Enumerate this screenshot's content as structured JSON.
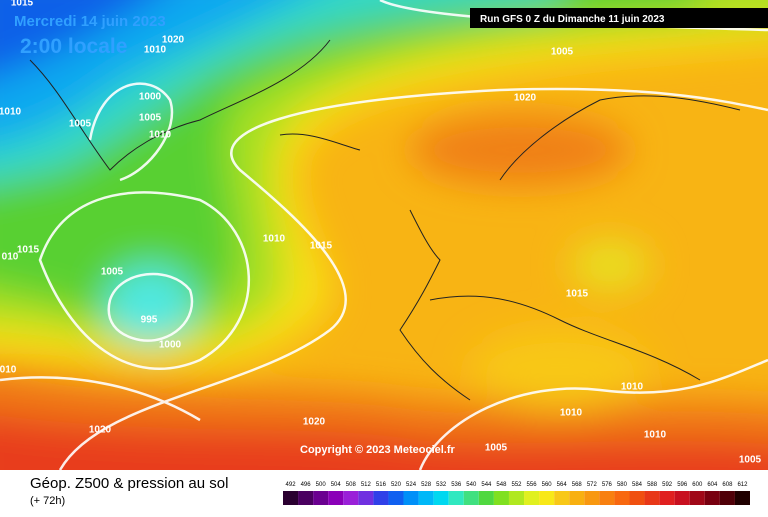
{
  "header": {
    "date": "Mercredi 14 juin 2023",
    "time": "2:00 locale",
    "run": "Run GFS 0 Z du Dimanche 11 juin 2023",
    "copyright": "Copyright © 2023 Meteociel.fr"
  },
  "footer": {
    "title": "Géop. Z500 & pression au sol",
    "subtitle": "(+ 72h)"
  },
  "isobar_labels": [
    "1015",
    "1020",
    "1010",
    "1005",
    "1020",
    "1000",
    "1005",
    "1005",
    "1010",
    "1010",
    "1015",
    "010",
    "1005",
    "1010",
    "1015",
    "995",
    "1000",
    "1015",
    "1010",
    "1010",
    "1020",
    "1020",
    "1005",
    "1010",
    "1005",
    "010"
  ],
  "legend": {
    "values": [
      492,
      496,
      500,
      504,
      508,
      512,
      516,
      520,
      524,
      528,
      532,
      536,
      540,
      544,
      548,
      552,
      556,
      560,
      564,
      568,
      572,
      576,
      580,
      584,
      588,
      592,
      596,
      600,
      604,
      608,
      612
    ],
    "colors": [
      "#2a0030",
      "#4a0060",
      "#6a0090",
      "#8a00b8",
      "#9a20d8",
      "#7030e0",
      "#3040e8",
      "#1060f0",
      "#0090f8",
      "#00b8f8",
      "#00d8f0",
      "#30e8c0",
      "#40e080",
      "#50d840",
      "#80e020",
      "#b0e820",
      "#e0f020",
      "#f8e818",
      "#f8c818",
      "#f8b010",
      "#f89810",
      "#f88010",
      "#f86810",
      "#f05010",
      "#e83818",
      "#e02020",
      "#c81020",
      "#a00818",
      "#780010",
      "#500008",
      "#200000"
    ]
  }
}
